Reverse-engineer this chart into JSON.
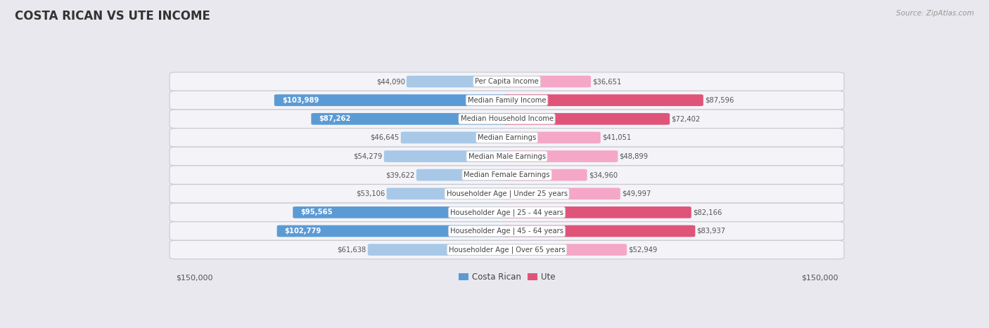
{
  "title": "COSTA RICAN VS UTE INCOME",
  "source": "Source: ZipAtlas.com",
  "categories": [
    "Per Capita Income",
    "Median Family Income",
    "Median Household Income",
    "Median Earnings",
    "Median Male Earnings",
    "Median Female Earnings",
    "Householder Age | Under 25 years",
    "Householder Age | 25 - 44 years",
    "Householder Age | 45 - 64 years",
    "Householder Age | Over 65 years"
  ],
  "costa_rican": [
    44090,
    103989,
    87262,
    46645,
    54279,
    39622,
    53106,
    95565,
    102779,
    61638
  ],
  "ute": [
    36651,
    87596,
    72402,
    41051,
    48899,
    34960,
    49997,
    82166,
    83937,
    52949
  ],
  "max_val": 150000,
  "color_cr_light": "#a8c8e8",
  "color_cr_dark": "#5b9bd5",
  "color_ute_light": "#f5a7c7",
  "color_ute_dark": "#e0547a",
  "bg_color": "#e8e8ee",
  "row_bg": "#f4f4f8",
  "threshold_cr_dark": 85000,
  "threshold_ute_dark": 65000,
  "legend_cr_color": "#5b9bd5",
  "legend_ute_color": "#e0547a"
}
